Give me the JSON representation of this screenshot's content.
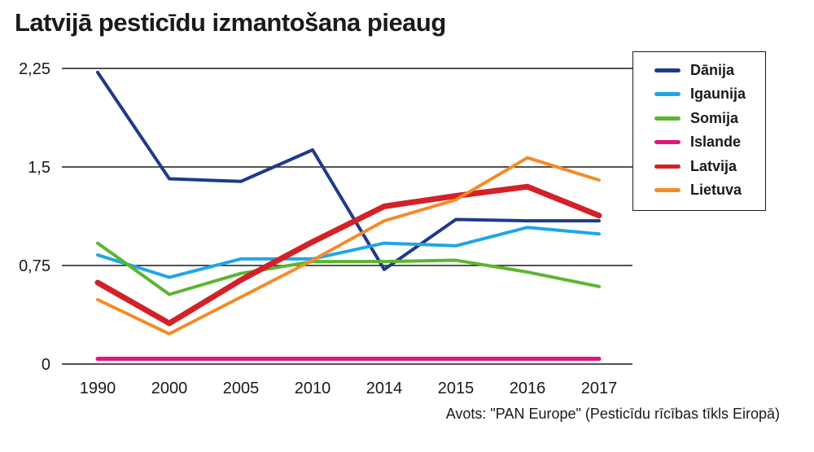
{
  "title": "Latvijā pesticīdu izmantošana pieaug",
  "source": "Avots: \"PAN Europe\" (Pesticīdu rīcības tīkls Eiropā)",
  "chart_data": {
    "type": "line",
    "title": "Latvijā pesticīdu izmantošana pieaug",
    "categories": [
      "1990",
      "2000",
      "2005",
      "2010",
      "2014",
      "2015",
      "2016",
      "2017"
    ],
    "y_ticks": [
      "0",
      "0,75",
      "1,5",
      "2,25"
    ],
    "y_tick_values": [
      0,
      0.75,
      1.5,
      2.25
    ],
    "ylim": [
      0,
      2.25
    ],
    "grid": "horizontal",
    "legend_position": "right",
    "series": [
      {
        "name": "Dānija",
        "color": "#1f3a8a",
        "values": [
          2.22,
          1.41,
          1.39,
          1.63,
          0.72,
          1.1,
          1.09,
          1.09
        ]
      },
      {
        "name": "Igaunija",
        "color": "#1fa6e6",
        "values": [
          0.83,
          0.66,
          0.8,
          0.8,
          0.92,
          0.9,
          1.04,
          0.99
        ]
      },
      {
        "name": "Somija",
        "color": "#5cb531",
        "values": [
          0.92,
          0.53,
          0.69,
          0.78,
          0.78,
          0.79,
          0.7,
          0.59
        ]
      },
      {
        "name": "Islande",
        "color": "#e3157a",
        "values": [
          0.04,
          0.04,
          0.04,
          0.04,
          0.04,
          0.04,
          0.04,
          0.04
        ]
      },
      {
        "name": "Latvija",
        "color": "#d32128",
        "values": [
          0.62,
          0.31,
          0.64,
          0.93,
          1.2,
          1.28,
          1.35,
          1.13
        ]
      },
      {
        "name": "Lietuva",
        "color": "#f28c28",
        "values": [
          0.49,
          0.23,
          0.51,
          0.79,
          1.09,
          1.25,
          1.57,
          1.4
        ]
      }
    ]
  }
}
